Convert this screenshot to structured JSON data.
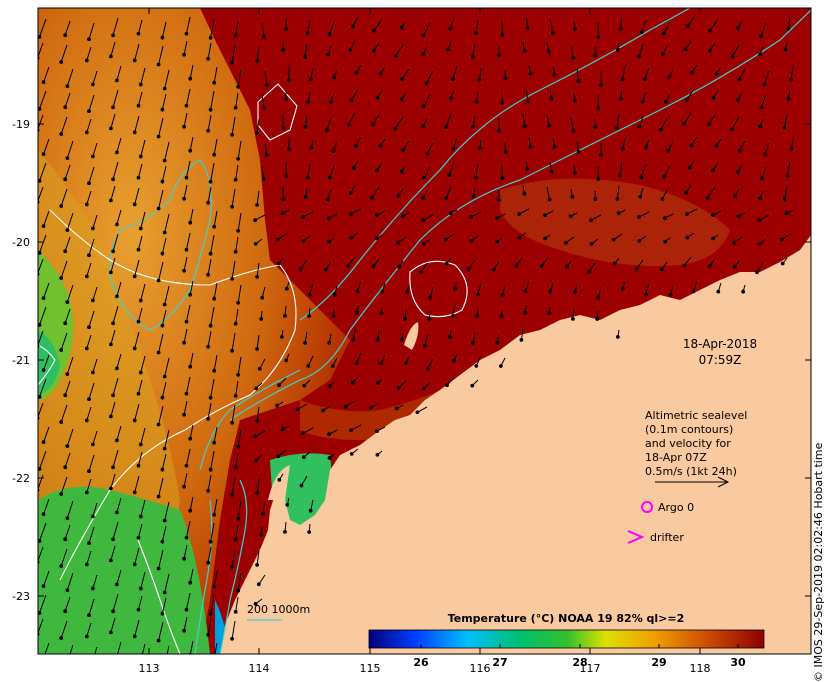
{
  "map": {
    "timestamp_date": "18-Apr-2018",
    "timestamp_time": "07:59Z",
    "legend_lines": [
      "Altimetric sealevel",
      "(0.1m contours)",
      "and velocity for",
      "18-Apr 07Z",
      "0.5m/s (1kt 24h)"
    ],
    "argo_label": "Argo 0",
    "drifter_label": "drifter",
    "bathymetry_label": "200  1000m",
    "colorbar_title": "Temperature (°C) NOAA 19 82% ql>=2",
    "colorbar_ticks": [
      "26",
      "27",
      "28",
      "29",
      "30"
    ],
    "x_ticks": [
      "113",
      "114",
      "115",
      "116",
      "117",
      "118"
    ],
    "y_ticks": [
      "-19",
      "-20",
      "-21",
      "-22",
      "-23"
    ],
    "credit": "© IMOS 29-Sep-2019 02:02:46 Hobart time",
    "colors": {
      "land": "#f9c9a0",
      "warm": "#9c0000",
      "contour": "#ffffff",
      "bathy": "#40d0d0",
      "argo": "#ff00ff"
    }
  }
}
